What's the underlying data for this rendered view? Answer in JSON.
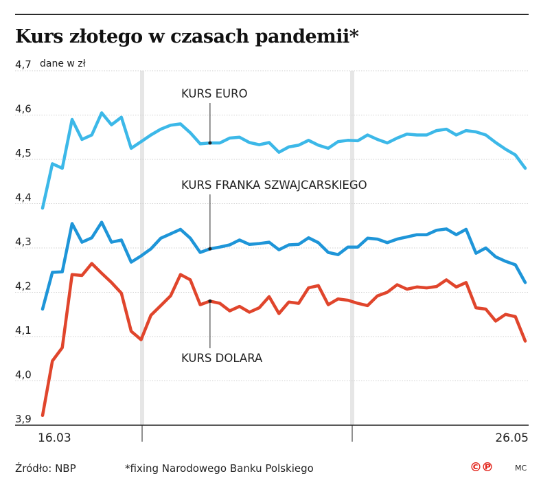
{
  "header": {
    "title": "Kurs złotego w czasach pandemii*",
    "unit": "dane w zł"
  },
  "footer": {
    "source": "Źródło: NBP",
    "note": "*fixing Narodowego Banku Polskiego",
    "logo": "©℗",
    "author": "MC"
  },
  "chart_data": {
    "type": "line",
    "title": "Kurs złotego w czasach pandemii*",
    "ylabel": "dane w zł",
    "ylim": [
      3.9,
      4.7
    ],
    "yticks": [
      "3,9",
      "4,0",
      "4,1",
      "4,2",
      "4,3",
      "4,4",
      "4,5",
      "4,6",
      "4,7"
    ],
    "x_start_label": "16.03",
    "x_end_label": "26.05",
    "grid": true,
    "series": [
      {
        "name": "KURS EURO",
        "color": "#3cb8e8",
        "values": [
          4.39,
          4.49,
          4.48,
          4.59,
          4.545,
          4.555,
          4.605,
          4.578,
          4.595,
          4.525,
          4.54,
          4.555,
          4.568,
          4.577,
          4.58,
          4.56,
          4.535,
          4.537,
          4.537,
          4.548,
          4.55,
          4.538,
          4.533,
          4.538,
          4.516,
          4.528,
          4.532,
          4.543,
          4.532,
          4.525,
          4.54,
          4.543,
          4.542,
          4.555,
          4.545,
          4.537,
          4.548,
          4.557,
          4.555,
          4.555,
          4.565,
          4.568,
          4.555,
          4.565,
          4.562,
          4.555,
          4.538,
          4.523,
          4.51,
          4.48
        ]
      },
      {
        "name": "KURS FRANKA SZWAJCARSKIEGO",
        "color": "#1e95d8",
        "values": [
          4.162,
          4.245,
          4.246,
          4.355,
          4.313,
          4.323,
          4.358,
          4.313,
          4.318,
          4.268,
          4.282,
          4.298,
          4.322,
          4.332,
          4.342,
          4.322,
          4.29,
          4.298,
          4.302,
          4.307,
          4.318,
          4.308,
          4.31,
          4.313,
          4.296,
          4.307,
          4.308,
          4.323,
          4.312,
          4.29,
          4.285,
          4.302,
          4.302,
          4.322,
          4.32,
          4.312,
          4.32,
          4.325,
          4.33,
          4.33,
          4.34,
          4.343,
          4.33,
          4.342,
          4.288,
          4.3,
          4.28,
          4.27,
          4.262,
          4.222
        ]
      },
      {
        "name": "KURS DOLARA",
        "color": "#e0452c",
        "values": [
          3.922,
          4.045,
          4.075,
          4.24,
          4.238,
          4.265,
          4.243,
          4.222,
          4.198,
          4.112,
          4.093,
          4.148,
          4.17,
          4.192,
          4.24,
          4.228,
          4.172,
          4.18,
          4.175,
          4.158,
          4.168,
          4.155,
          4.165,
          4.19,
          4.152,
          4.178,
          4.175,
          4.21,
          4.215,
          4.172,
          4.185,
          4.182,
          4.175,
          4.17,
          4.192,
          4.2,
          4.217,
          4.207,
          4.212,
          4.21,
          4.213,
          4.228,
          4.212,
          4.222,
          4.165,
          4.162,
          4.135,
          4.15,
          4.145,
          4.09
        ]
      }
    ]
  }
}
